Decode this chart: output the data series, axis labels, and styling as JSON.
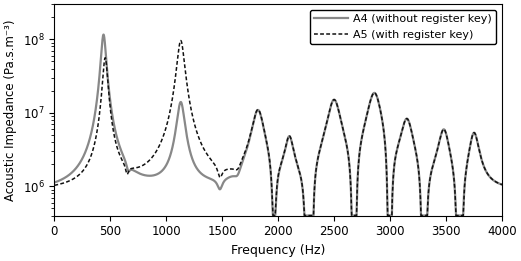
{
  "xlabel": "Frequency (Hz)",
  "ylabel": "Acoustic Impedance (Pa.s.m⁻³)",
  "xlim": [
    0,
    4000
  ],
  "ylim_log": [
    400000.0,
    300000000.0
  ],
  "legend_a4": "A4 (without register key)",
  "legend_a5": "A5 (with register key)",
  "a4_color": "#888888",
  "a5_color": "#111111",
  "a4_linewidth": 1.6,
  "a5_linewidth": 1.1,
  "figsize": [
    5.21,
    2.61
  ],
  "dpi": 100
}
